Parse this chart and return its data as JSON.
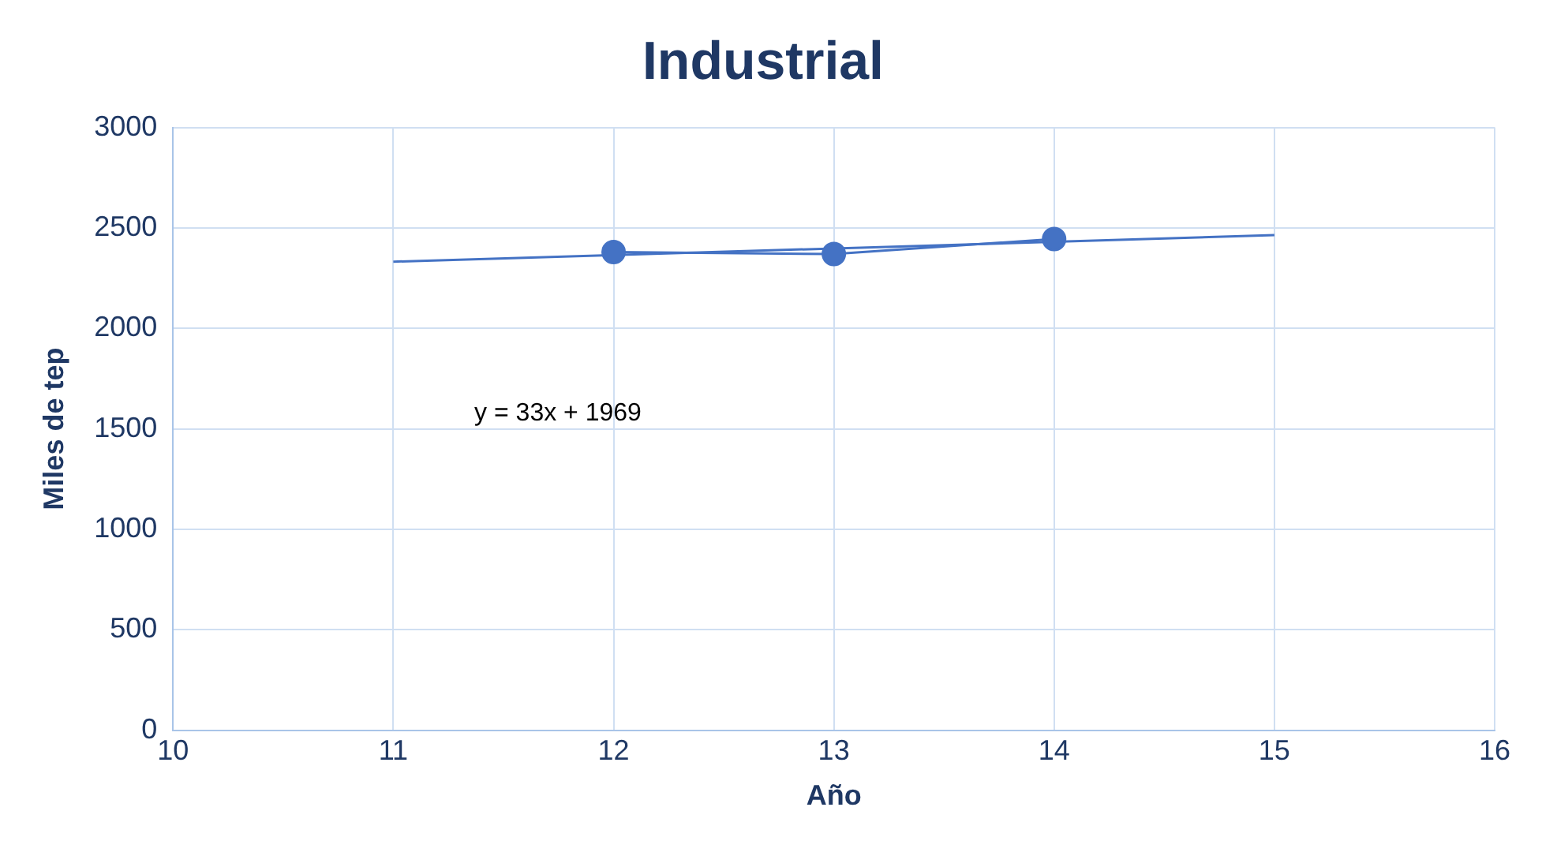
{
  "chart_data": {
    "type": "line",
    "title": "Industrial",
    "xlabel": "Año",
    "ylabel": "Miles de tep",
    "marker": "circle",
    "series": [
      {
        "color": "#4472c4",
        "x": [
          12,
          13,
          14
        ],
        "values": [
          2380,
          2370,
          2445
        ]
      },
      {
        "type": "line",
        "color": "#4472c4",
        "x": [
          11,
          15
        ],
        "values": [
          2332,
          2464
        ],
        "marker": "none"
      }
    ],
    "xlim": [
      10,
      16
    ],
    "xticks": [
      10,
      11,
      12,
      13,
      14,
      15,
      16
    ],
    "ylim": [
      0,
      3000
    ],
    "yticks": [
      0,
      500,
      1000,
      1500,
      2000,
      2500,
      3000
    ],
    "grid": true,
    "legend": false,
    "annotations": [
      "y = 33x + 1969"
    ]
  }
}
